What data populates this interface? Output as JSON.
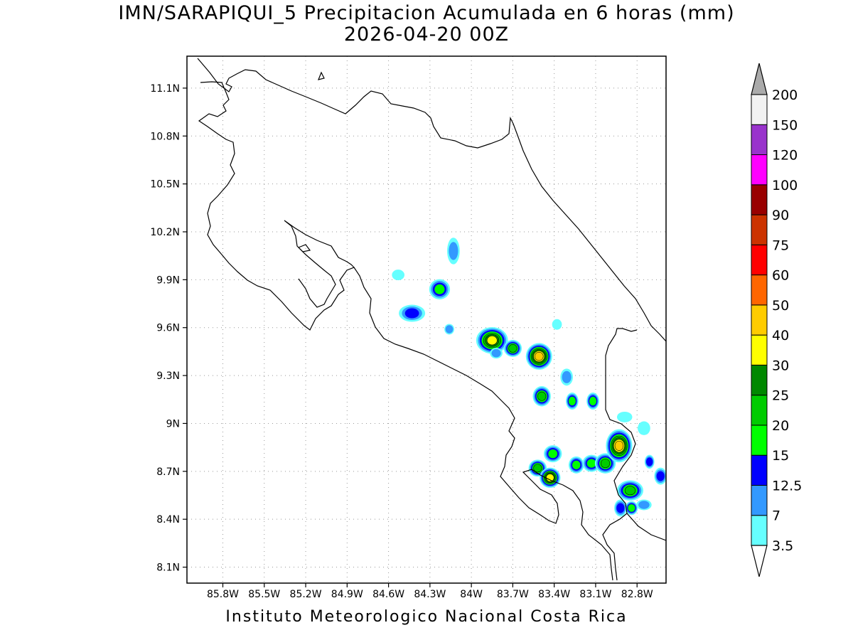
{
  "title": {
    "line1": "IMN/SARAPIQUI_5 Precipitacion Acumulada en 6 horas (mm)",
    "line2": "2026-04-20 00Z"
  },
  "footer": "Instituto Meteorologico Nacional Costa Rica",
  "map": {
    "lon_range": [
      -86.06,
      -82.59
    ],
    "lat_range": [
      8.0,
      11.3
    ],
    "lat_ticks": [
      "11.1N",
      "10.8N",
      "10.5N",
      "10.2N",
      "9.9N",
      "9.6N",
      "9.3N",
      "9N",
      "8.7N",
      "8.4N",
      "8.1N"
    ],
    "lat_values": [
      11.1,
      10.8,
      10.5,
      10.2,
      9.9,
      9.6,
      9.3,
      9.0,
      8.7,
      8.4,
      8.1
    ],
    "lon_ticks": [
      "85.8W",
      "85.5W",
      "85.2W",
      "84.9W",
      "84.6W",
      "84.3W",
      "84W",
      "83.7W",
      "83.4W",
      "83.1W",
      "82.8W"
    ],
    "lon_values": [
      -85.8,
      -85.5,
      -85.2,
      -84.9,
      -84.6,
      -84.3,
      -84.0,
      -83.7,
      -83.4,
      -83.1,
      -82.8
    ],
    "grid": true
  },
  "colorbar": {
    "levels": [
      "3.5",
      "7",
      "12.5",
      "15",
      "20",
      "25",
      "30",
      "40",
      "50",
      "60",
      "75",
      "90",
      "100",
      "120",
      "150",
      "200"
    ],
    "colors": [
      "#ffffff",
      "#66ffff",
      "#3399ff",
      "#0000ff",
      "#00ff00",
      "#00cc00",
      "#008800",
      "#ffff00",
      "#ffcc00",
      "#ff6600",
      "#ff0000",
      "#cc3300",
      "#990000",
      "#ff00ff",
      "#9933cc",
      "#f2f2f2"
    ],
    "over_color": "#aaaaaa",
    "under_color": "#ffffff"
  },
  "rain_cells": [
    {
      "lon": -84.13,
      "lat": 10.08,
      "rx": 0.03,
      "ry": 0.07,
      "level": 2
    },
    {
      "lon": -84.53,
      "lat": 9.93,
      "rx": 0.03,
      "ry": 0.02,
      "level": 1
    },
    {
      "lon": -84.23,
      "lat": 9.84,
      "rx": 0.06,
      "ry": 0.05,
      "level": 4
    },
    {
      "lon": -84.43,
      "lat": 9.69,
      "rx": 0.08,
      "ry": 0.04,
      "level": 3
    },
    {
      "lon": -83.85,
      "lat": 9.52,
      "rx": 0.1,
      "ry": 0.07,
      "level": 7
    },
    {
      "lon": -83.7,
      "lat": 9.47,
      "rx": 0.05,
      "ry": 0.04,
      "level": 5
    },
    {
      "lon": -83.51,
      "lat": 9.42,
      "rx": 0.08,
      "ry": 0.07,
      "level": 8
    },
    {
      "lon": -83.49,
      "lat": 9.17,
      "rx": 0.05,
      "ry": 0.05,
      "level": 5
    },
    {
      "lon": -83.27,
      "lat": 9.14,
      "rx": 0.03,
      "ry": 0.04,
      "level": 4
    },
    {
      "lon": -83.12,
      "lat": 9.14,
      "rx": 0.03,
      "ry": 0.04,
      "level": 4
    },
    {
      "lon": -83.41,
      "lat": 8.81,
      "rx": 0.05,
      "ry": 0.04,
      "level": 4
    },
    {
      "lon": -83.52,
      "lat": 8.72,
      "rx": 0.05,
      "ry": 0.04,
      "level": 5
    },
    {
      "lon": -83.43,
      "lat": 8.66,
      "rx": 0.06,
      "ry": 0.05,
      "level": 7
    },
    {
      "lon": -83.24,
      "lat": 8.74,
      "rx": 0.04,
      "ry": 0.04,
      "level": 4
    },
    {
      "lon": -83.13,
      "lat": 8.75,
      "rx": 0.05,
      "ry": 0.04,
      "level": 4
    },
    {
      "lon": -83.03,
      "lat": 8.75,
      "rx": 0.06,
      "ry": 0.05,
      "level": 5
    },
    {
      "lon": -82.93,
      "lat": 8.86,
      "rx": 0.08,
      "ry": 0.09,
      "level": 8
    },
    {
      "lon": -82.85,
      "lat": 8.58,
      "rx": 0.08,
      "ry": 0.05,
      "level": 5
    },
    {
      "lon": -82.92,
      "lat": 8.47,
      "rx": 0.03,
      "ry": 0.04,
      "level": 3
    },
    {
      "lon": -82.84,
      "lat": 8.47,
      "rx": 0.03,
      "ry": 0.03,
      "level": 4
    },
    {
      "lon": -82.71,
      "lat": 8.76,
      "rx": 0.02,
      "ry": 0.03,
      "level": 3
    },
    {
      "lon": -82.63,
      "lat": 8.67,
      "rx": 0.03,
      "ry": 0.04,
      "level": 3
    },
    {
      "lon": -82.89,
      "lat": 9.04,
      "rx": 0.04,
      "ry": 0.02,
      "level": 1
    },
    {
      "lon": -82.75,
      "lat": 8.97,
      "rx": 0.03,
      "ry": 0.03,
      "level": 1
    },
    {
      "lon": -83.31,
      "lat": 9.29,
      "rx": 0.03,
      "ry": 0.04,
      "level": 2
    },
    {
      "lon": -83.82,
      "lat": 9.44,
      "rx": 0.03,
      "ry": 0.02,
      "level": 2
    },
    {
      "lon": -84.16,
      "lat": 9.59,
      "rx": 0.02,
      "ry": 0.02,
      "level": 2
    },
    {
      "lon": -83.38,
      "lat": 9.62,
      "rx": 0.02,
      "ry": 0.02,
      "level": 1
    },
    {
      "lon": -82.75,
      "lat": 8.49,
      "rx": 0.04,
      "ry": 0.02,
      "level": 2
    }
  ]
}
